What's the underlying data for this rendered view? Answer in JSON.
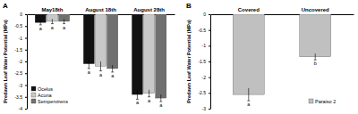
{
  "chart_data": [
    {
      "type": "bar",
      "title": "A",
      "y_label": "Predawn Leaf Water Potential (MPa)",
      "categories": [
        "May18th",
        "August 18th",
        "August 28th"
      ],
      "series": [
        {
          "name": "Ocelus",
          "color": "#111111",
          "values": [
            -0.35,
            -2.1,
            -3.4
          ],
          "errors": [
            0.1,
            0.2,
            0.2
          ],
          "annotations": [
            "a",
            "a",
            "a"
          ]
        },
        {
          "name": "Acuna",
          "color": "#c8c8c8",
          "values": [
            -0.3,
            -2.2,
            -3.35
          ],
          "errors": [
            0.1,
            0.2,
            0.15
          ],
          "annotations": [
            "a",
            "a",
            "a"
          ]
        },
        {
          "name": "Sempervirens",
          "color": "#707070",
          "values": [
            -0.3,
            -2.3,
            -3.55
          ],
          "errors": [
            0.1,
            0.15,
            0.15
          ],
          "annotations": [
            "a",
            "a",
            "a"
          ]
        }
      ],
      "ylim": [
        -4,
        0
      ],
      "yticks": [
        0,
        -0.5,
        -1,
        -1.5,
        -2,
        -2.5,
        -3,
        -3.5,
        -4
      ],
      "legend": "bottom-left"
    },
    {
      "type": "bar",
      "title": "B",
      "y_label": "Predawn Leaf Water Potential (MPa)",
      "categories": [
        "Covered",
        "Uncovered"
      ],
      "series": [
        {
          "name": "Paraiso 2",
          "color": "#c0c0c0",
          "values": [
            -2.55,
            -1.35
          ],
          "errors": [
            0.2,
            0.1
          ],
          "annotations": [
            "a",
            "b"
          ]
        }
      ],
      "ylim": [
        -3,
        0
      ],
      "yticks": [
        0,
        -0.5,
        -1,
        -1.5,
        -2,
        -2.5,
        -3
      ],
      "legend": "bottom-right"
    }
  ]
}
